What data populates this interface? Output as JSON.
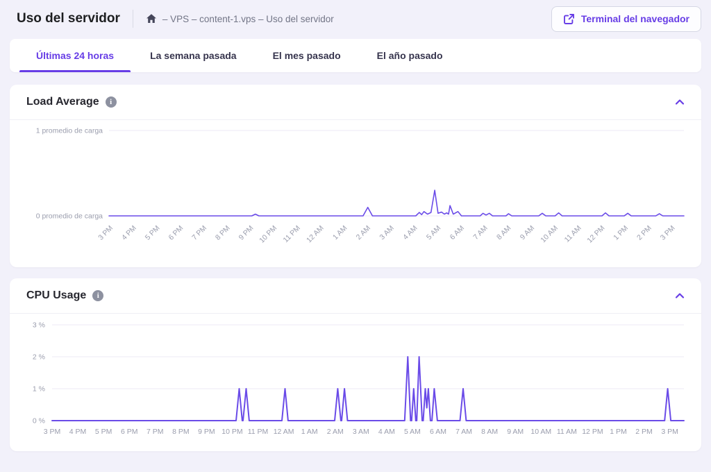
{
  "colors": {
    "accent": "#673de6",
    "line": "#6a4be8",
    "page_bg": "#f2f1fa",
    "grid": "#eceaf4"
  },
  "icons": {
    "home": "home",
    "external_link": "external-link",
    "info_glyph": "i",
    "chevron": "chevron-up"
  },
  "header": {
    "title": "Uso del servidor",
    "breadcrumb": "– VPS – content-1.vps – Uso del servidor",
    "terminal_button_label": "Terminal del navegador"
  },
  "tabs": [
    {
      "label": "Últimas 24 horas",
      "active": true
    },
    {
      "label": "La semana pasada",
      "active": false
    },
    {
      "label": "El mes pasado",
      "active": false
    },
    {
      "label": "El año pasado",
      "active": false
    }
  ],
  "chart_data": [
    {
      "type": "line",
      "title": "Load Average",
      "line_color": "#6a4be8",
      "ylim": [
        0,
        1
      ],
      "grid": true,
      "legend": "none",
      "x_label_rotation": -45,
      "y_ticks": [
        {
          "value": 1,
          "label": "1 promedio de carga"
        },
        {
          "value": 0,
          "label": "0 promedio de carga"
        }
      ],
      "x_tick_labels": [
        "3 PM",
        "4 PM",
        "5 PM",
        "6 PM",
        "7 PM",
        "8 PM",
        "9 PM",
        "10 PM",
        "11 PM",
        "12 AM",
        "1 AM",
        "2 AM",
        "3 AM",
        "4 AM",
        "5 AM",
        "6 AM",
        "7 AM",
        "8 AM",
        "9 AM",
        "10 AM",
        "11 AM",
        "12 PM",
        "1 PM",
        "2 PM",
        "3 PM"
      ],
      "x_unit": "hours from 3 PM",
      "points": [
        [
          0,
          0
        ],
        [
          6.1,
          0
        ],
        [
          6.25,
          0.02
        ],
        [
          6.4,
          0
        ],
        [
          10.85,
          0
        ],
        [
          11.05,
          0.1
        ],
        [
          11.25,
          0
        ],
        [
          13.1,
          0
        ],
        [
          13.25,
          0.04
        ],
        [
          13.35,
          0.015
        ],
        [
          13.45,
          0.05
        ],
        [
          13.6,
          0.02
        ],
        [
          13.75,
          0.04
        ],
        [
          13.91,
          0.3
        ],
        [
          14.05,
          0.03
        ],
        [
          14.2,
          0.045
        ],
        [
          14.32,
          0.02
        ],
        [
          14.42,
          0.035
        ],
        [
          14.5,
          0.02
        ],
        [
          14.56,
          0.12
        ],
        [
          14.7,
          0.02
        ],
        [
          14.9,
          0.05
        ],
        [
          15.05,
          0
        ],
        [
          15.85,
          0
        ],
        [
          15.97,
          0.03
        ],
        [
          16.1,
          0.01
        ],
        [
          16.24,
          0.03
        ],
        [
          16.38,
          0
        ],
        [
          16.95,
          0
        ],
        [
          17.06,
          0.025
        ],
        [
          17.2,
          0
        ],
        [
          18.35,
          0
        ],
        [
          18.5,
          0.03
        ],
        [
          18.65,
          0
        ],
        [
          19.05,
          0
        ],
        [
          19.2,
          0.035
        ],
        [
          19.35,
          0
        ],
        [
          21.05,
          0
        ],
        [
          21.2,
          0.035
        ],
        [
          21.35,
          0
        ],
        [
          22.0,
          0
        ],
        [
          22.15,
          0.03
        ],
        [
          22.3,
          0
        ],
        [
          23.35,
          0
        ],
        [
          23.5,
          0.025
        ],
        [
          23.65,
          0
        ],
        [
          24.55,
          0
        ]
      ]
    },
    {
      "type": "line",
      "title": "CPU Usage",
      "line_color": "#6a4be8",
      "ylim": [
        0,
        3
      ],
      "grid": true,
      "legend": "none",
      "x_label_rotation": 0,
      "y_ticks": [
        {
          "value": 3,
          "label": "3 %"
        },
        {
          "value": 2,
          "label": "2 %"
        },
        {
          "value": 1,
          "label": "1 %"
        },
        {
          "value": 0,
          "label": "0 %"
        }
      ],
      "x_tick_labels": [
        "3 PM",
        "4 PM",
        "5 PM",
        "6 PM",
        "7 PM",
        "8 PM",
        "9 PM",
        "10 PM",
        "11 PM",
        "12 AM",
        "1 AM",
        "2 AM",
        "3 AM",
        "4 AM",
        "5 AM",
        "6 AM",
        "7 AM",
        "8 AM",
        "9 AM",
        "10 AM",
        "11 AM",
        "12 PM",
        "1 PM",
        "2 PM",
        "3 PM"
      ],
      "x_unit": "hours from 3 PM",
      "points": [
        [
          0,
          0
        ],
        [
          7.15,
          0
        ],
        [
          7.27,
          1
        ],
        [
          7.39,
          0
        ],
        [
          7.42,
          0
        ],
        [
          7.54,
          1
        ],
        [
          7.66,
          0
        ],
        [
          8.93,
          0
        ],
        [
          9.05,
          1
        ],
        [
          9.17,
          0
        ],
        [
          10.98,
          0
        ],
        [
          11.1,
          1
        ],
        [
          11.22,
          0
        ],
        [
          11.25,
          0
        ],
        [
          11.36,
          1
        ],
        [
          11.48,
          0
        ],
        [
          13.7,
          0
        ],
        [
          13.82,
          2
        ],
        [
          13.93,
          0
        ],
        [
          13.97,
          0
        ],
        [
          14.05,
          1
        ],
        [
          14.13,
          0
        ],
        [
          14.17,
          0
        ],
        [
          14.26,
          2
        ],
        [
          14.38,
          0
        ],
        [
          14.42,
          0
        ],
        [
          14.5,
          1
        ],
        [
          14.56,
          0.4
        ],
        [
          14.62,
          1
        ],
        [
          14.7,
          0
        ],
        [
          14.76,
          0
        ],
        [
          14.85,
          1
        ],
        [
          14.97,
          0
        ],
        [
          15.85,
          0
        ],
        [
          15.97,
          1
        ],
        [
          16.09,
          0
        ],
        [
          23.8,
          0
        ],
        [
          23.92,
          1
        ],
        [
          24.04,
          0
        ],
        [
          24.55,
          0
        ]
      ]
    }
  ]
}
